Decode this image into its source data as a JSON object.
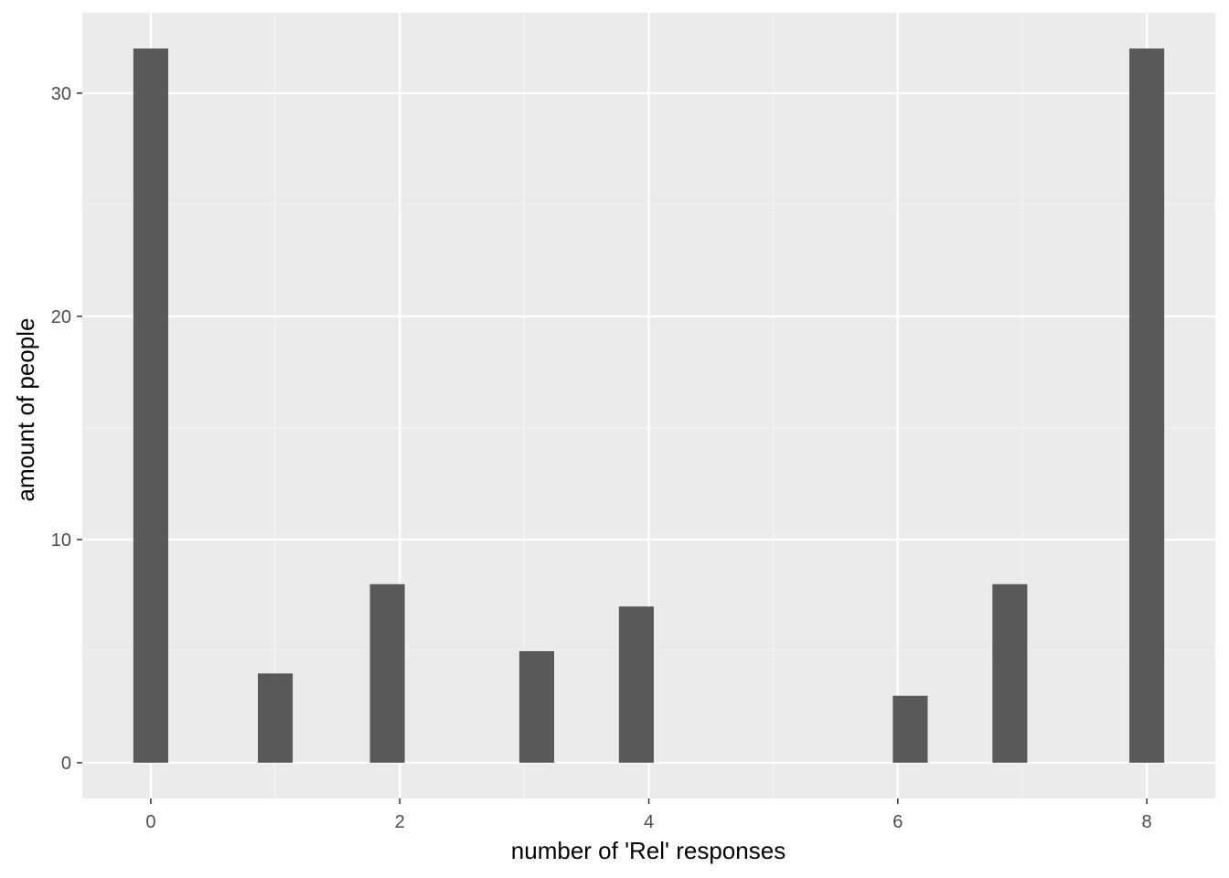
{
  "chart_data": {
    "type": "bar",
    "x": [
      0,
      1,
      1.9,
      3.1,
      3.9,
      6.1,
      6.9,
      8
    ],
    "values": [
      32,
      4,
      8,
      5,
      7,
      3,
      8,
      32
    ],
    "xlabel": "number of 'Rel' responses",
    "ylabel": "amount of people",
    "xlim": [
      -0.55,
      8.55
    ],
    "ylim": [
      -1.6,
      33.6
    ],
    "x_ticks": [
      0,
      2,
      4,
      6,
      8
    ],
    "x_tick_labels": [
      "0",
      "2",
      "4",
      "6",
      "8"
    ],
    "y_ticks": [
      0,
      10,
      20,
      30
    ],
    "y_tick_labels": [
      "0",
      "10",
      "20",
      "30"
    ],
    "grid": true,
    "legend": "none",
    "colors": {
      "panel_background": "#ebebeb",
      "grid_major": "#ffffff",
      "grid_minor": "#f5f5f5",
      "bar_fill": "#595959",
      "tick_mark": "#333333"
    }
  }
}
